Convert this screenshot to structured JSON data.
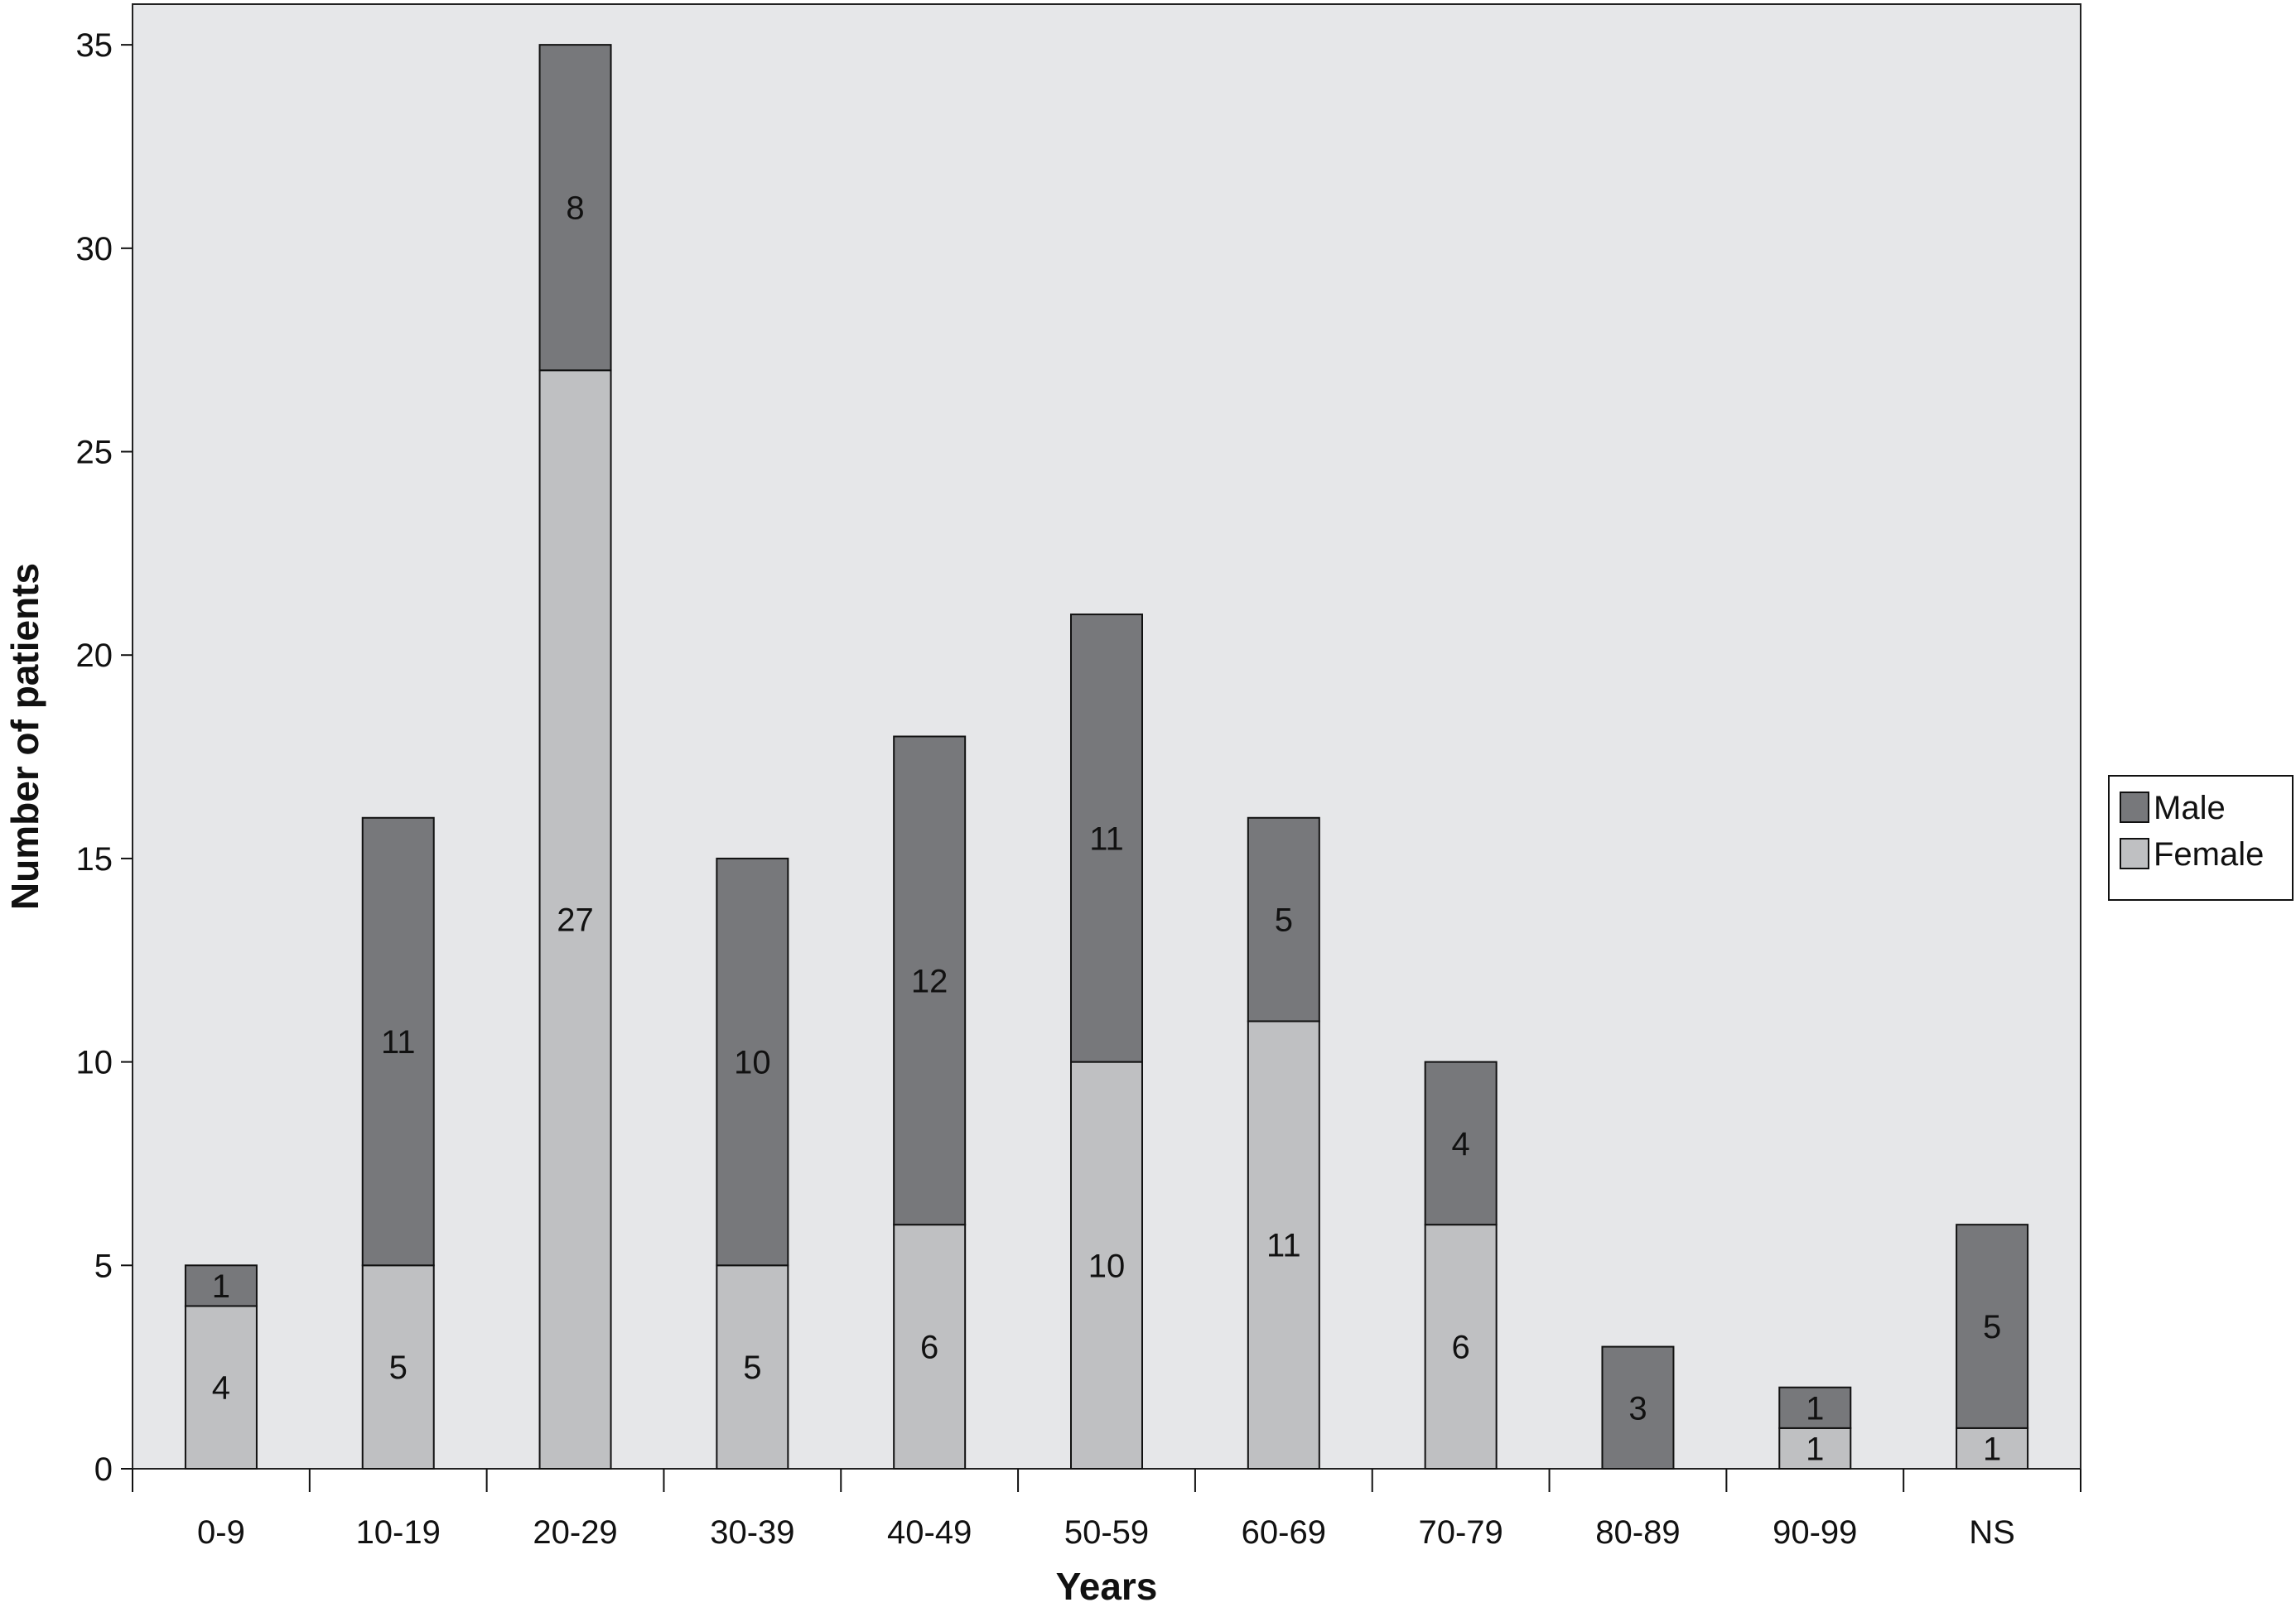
{
  "chart_data": {
    "type": "bar",
    "stacked": true,
    "title": "",
    "xlabel": "Years",
    "ylabel": "Number of patients",
    "ylim": [
      0,
      36
    ],
    "yticks": [
      0,
      5,
      10,
      15,
      20,
      25,
      30,
      35
    ],
    "categories": [
      "0-9",
      "10-19",
      "20-29",
      "30-39",
      "40-49",
      "50-59",
      "60-69",
      "70-79",
      "80-89",
      "90-99",
      "NS"
    ],
    "series": [
      {
        "name": "Female",
        "color": "#bfc0c2",
        "values": [
          4,
          5,
          27,
          5,
          6,
          10,
          11,
          6,
          0,
          1,
          1
        ]
      },
      {
        "name": "Male",
        "color": "#77787b",
        "values": [
          1,
          11,
          8,
          10,
          12,
          11,
          5,
          4,
          3,
          1,
          5
        ]
      }
    ],
    "plot_background": "#e6e7e9",
    "grid": false,
    "legend_position": "right",
    "legend_order": [
      "Male",
      "Female"
    ]
  }
}
